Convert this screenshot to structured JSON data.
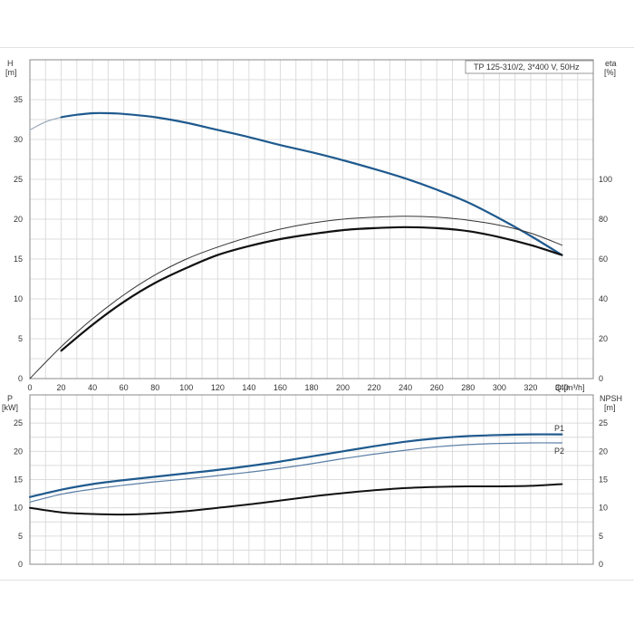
{
  "title": "TP 125-310/2, 3*400 V, 50Hz",
  "chart_data": [
    {
      "type": "line",
      "xlabel": "Q [m³/h]",
      "xlim": [
        0,
        360
      ],
      "xticks": [
        0,
        20,
        40,
        60,
        80,
        100,
        120,
        140,
        160,
        180,
        200,
        220,
        240,
        260,
        280,
        300,
        320,
        340
      ],
      "left_axis": {
        "label_top": "H",
        "label_unit": "[m]",
        "ylim": [
          0,
          40
        ],
        "ticks": [
          0,
          5,
          10,
          15,
          20,
          25,
          30,
          35
        ]
      },
      "right_axis": {
        "label_top": "eta",
        "label_unit": "[%]",
        "ylim": [
          0,
          160
        ],
        "ticks": [
          0,
          20,
          40,
          60,
          80,
          100
        ]
      },
      "series": [
        {
          "axis": "left",
          "color": "#9aa8b8",
          "width": 1.2,
          "x": [
            0,
            10,
            20
          ],
          "y": [
            31.2,
            32.2,
            32.8
          ]
        },
        {
          "axis": "left",
          "color": "#1f5a8e",
          "width": 2.2,
          "x": [
            20,
            30,
            40,
            50,
            60,
            80,
            100,
            120,
            140,
            160,
            180,
            200,
            220,
            240,
            260,
            280,
            300,
            320,
            340
          ],
          "y": [
            32.8,
            33.1,
            33.3,
            33.3,
            33.2,
            32.8,
            32.1,
            31.2,
            30.3,
            29.3,
            28.4,
            27.4,
            26.3,
            25.1,
            23.7,
            22.1,
            20.1,
            17.9,
            15.5
          ]
        },
        {
          "axis": "right",
          "color": "#333333",
          "width": 1.0,
          "x": [
            0,
            20,
            40,
            60,
            80,
            100,
            120,
            140,
            160,
            180,
            200,
            220,
            240,
            260,
            280,
            300,
            320,
            340
          ],
          "y": [
            0,
            16,
            30,
            42,
            52,
            60,
            66,
            71,
            75,
            78,
            80,
            81,
            81.5,
            81,
            79.5,
            77,
            73,
            67
          ]
        },
        {
          "axis": "right",
          "color": "#111111",
          "width": 2.2,
          "x": [
            20,
            40,
            60,
            80,
            100,
            120,
            140,
            160,
            180,
            200,
            220,
            240,
            260,
            280,
            300,
            320,
            340
          ],
          "y": [
            14,
            27,
            38.5,
            48,
            55.5,
            62,
            66.5,
            70,
            72.5,
            74.5,
            75.5,
            76,
            75.5,
            74,
            71,
            67,
            62
          ]
        }
      ]
    },
    {
      "type": "line",
      "xlim": [
        0,
        360
      ],
      "left_axis": {
        "label_top": "P",
        "label_unit": "[kW]",
        "ylim": [
          0,
          30
        ],
        "ticks": [
          0,
          5,
          10,
          15,
          20,
          25
        ]
      },
      "right_axis": {
        "label_top": "NPSH",
        "label_unit": "[m]",
        "ylim": [
          0,
          30
        ],
        "ticks": [
          0,
          5,
          10,
          15,
          20,
          25
        ]
      },
      "series": [
        {
          "name": "P1",
          "axis": "left",
          "color": "#1f5a8e",
          "width": 2.2,
          "x": [
            0,
            20,
            40,
            60,
            80,
            100,
            120,
            140,
            160,
            180,
            200,
            220,
            240,
            260,
            280,
            300,
            320,
            340
          ],
          "y": [
            11.9,
            13.2,
            14.2,
            14.9,
            15.5,
            16.1,
            16.7,
            17.4,
            18.2,
            19.1,
            20.0,
            20.9,
            21.7,
            22.3,
            22.7,
            22.9,
            23.0,
            23.0
          ]
        },
        {
          "name": "P2",
          "axis": "left",
          "color": "#5b7fa6",
          "width": 1.2,
          "x": [
            0,
            20,
            40,
            60,
            80,
            100,
            120,
            140,
            160,
            180,
            200,
            220,
            240,
            260,
            280,
            300,
            320,
            340
          ],
          "y": [
            11.0,
            12.4,
            13.3,
            14.0,
            14.6,
            15.1,
            15.7,
            16.3,
            17.0,
            17.8,
            18.7,
            19.5,
            20.2,
            20.8,
            21.2,
            21.4,
            21.5,
            21.5
          ]
        },
        {
          "axis": "right",
          "color": "#111111",
          "width": 2.0,
          "x": [
            0,
            20,
            40,
            60,
            80,
            100,
            120,
            140,
            160,
            180,
            200,
            220,
            240,
            260,
            280,
            300,
            320,
            340
          ],
          "y": [
            10.0,
            9.2,
            8.9,
            8.8,
            9.0,
            9.4,
            10.0,
            10.6,
            11.3,
            12.0,
            12.6,
            13.1,
            13.5,
            13.7,
            13.8,
            13.8,
            13.9,
            14.2
          ]
        }
      ]
    }
  ]
}
